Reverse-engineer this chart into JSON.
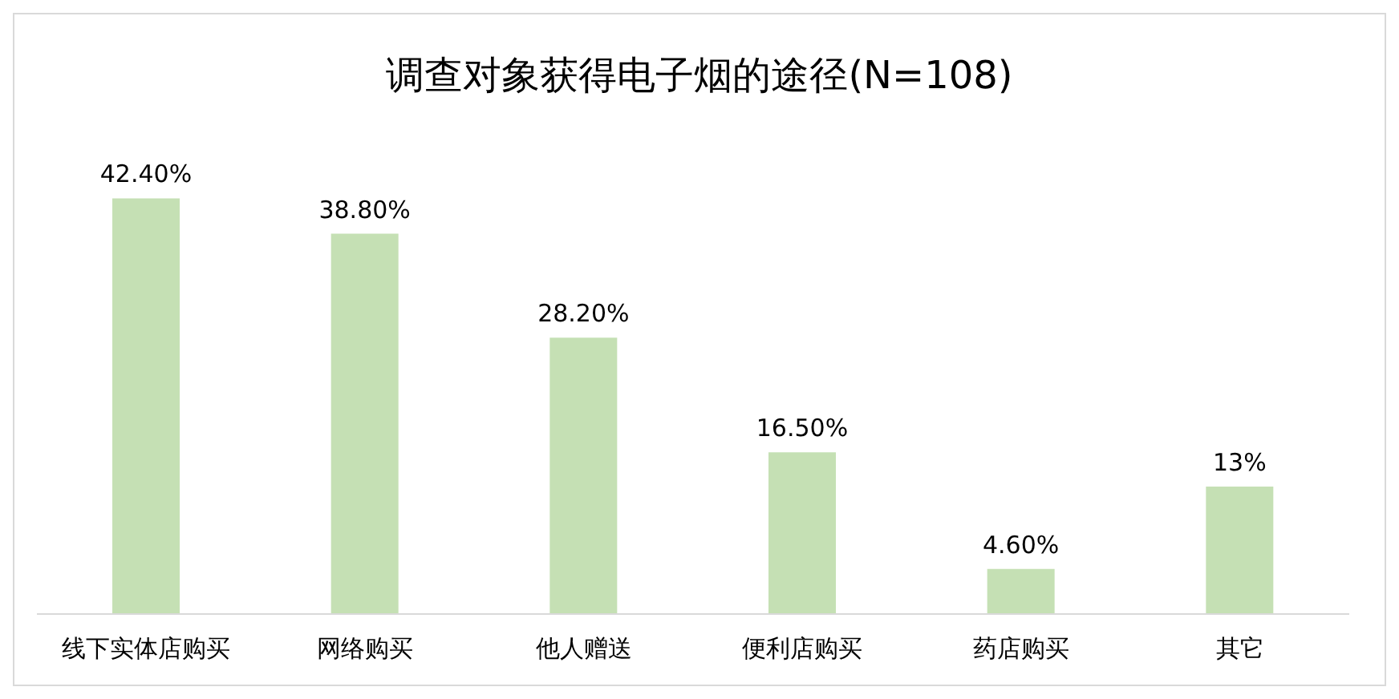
{
  "chart_data": {
    "type": "bar",
    "title": "调查对象获得电子烟的途径(N=108)",
    "categories": [
      "线下实体店购买",
      "网络购买",
      "他人赠送",
      "便利店购买",
      "药店购买",
      "其它"
    ],
    "values": [
      42.4,
      38.8,
      28.2,
      16.5,
      4.6,
      13
    ],
    "value_labels": [
      "42.40%",
      "38.80%",
      "28.20%",
      "16.50%",
      "4.60%",
      "13%"
    ],
    "color": "#c5e0b4",
    "grid": false,
    "legend": false
  }
}
